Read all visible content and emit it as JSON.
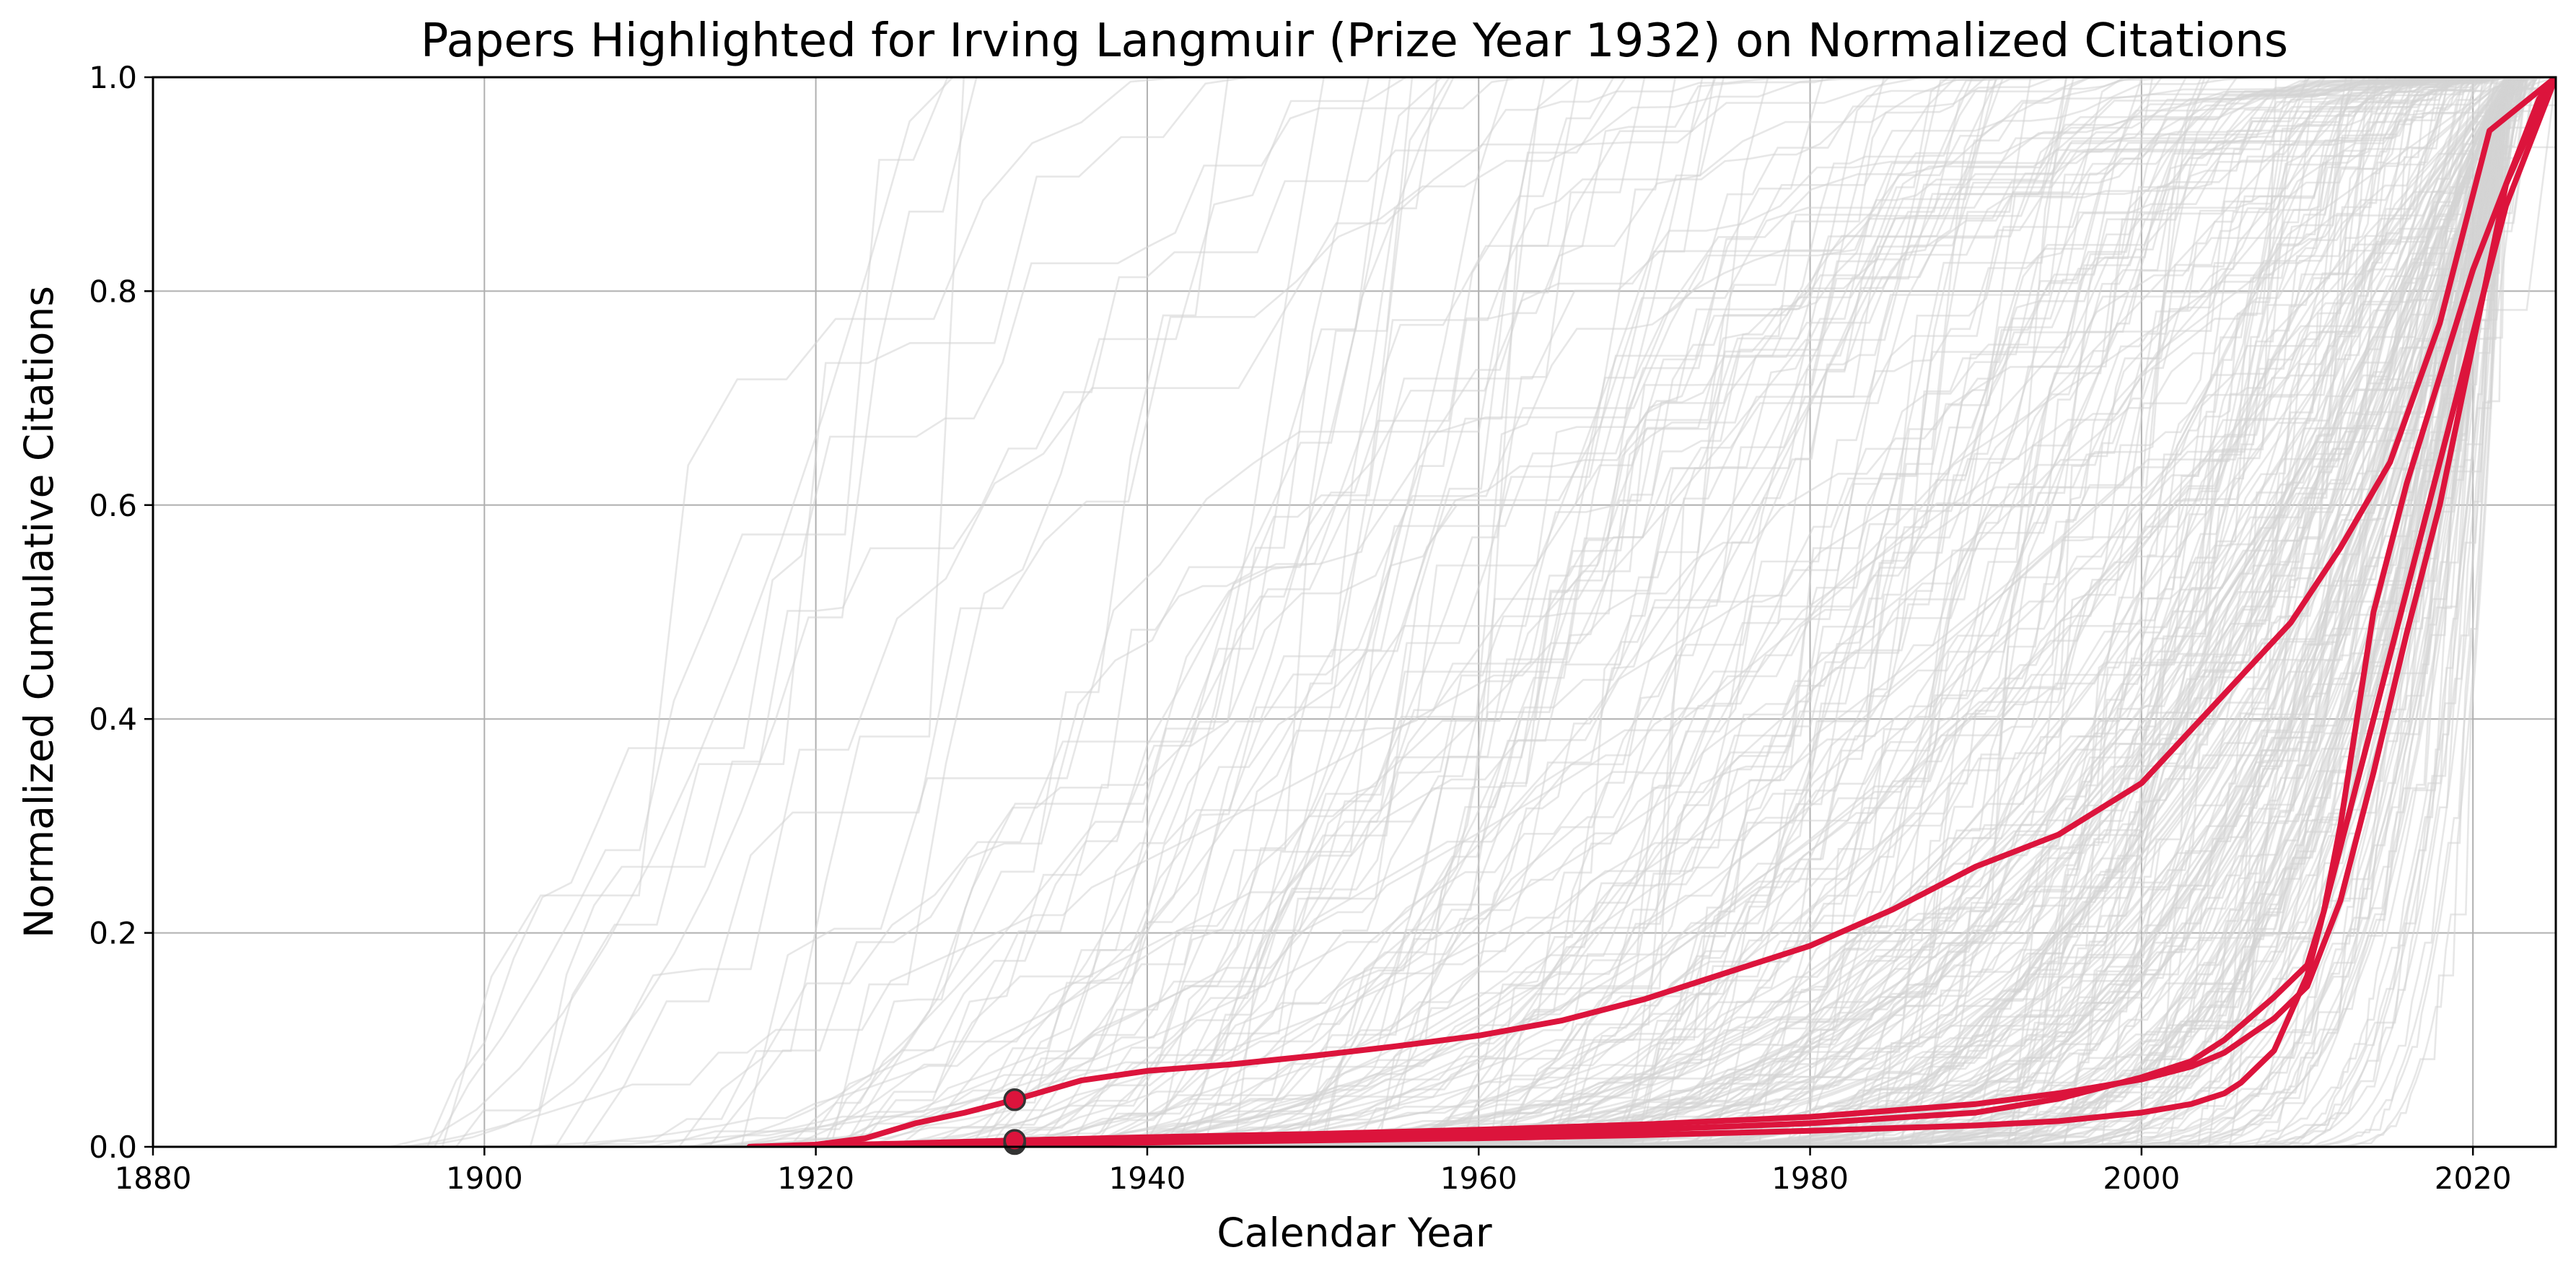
{
  "chart_data": {
    "type": "line",
    "title": "Papers Highlighted for Irving Langmuir (Prize Year 1932) on Normalized Citations",
    "xlabel": "Calendar Year",
    "ylabel": "Normalized Cumulative Citations",
    "xlim": [
      1880,
      2025
    ],
    "ylim": [
      0,
      1
    ],
    "x_ticks": [
      1880,
      1900,
      1920,
      1940,
      1960,
      1980,
      2000,
      2020
    ],
    "y_ticks": [
      0.0,
      0.2,
      0.4,
      0.6,
      0.8,
      1.0
    ],
    "grid": true,
    "prize_year": 1932,
    "background_series_color": "#d3d3d3",
    "highlight_color": "#dc143c",
    "marker_edge_color": "#333333",
    "highlighted_series": [
      {
        "x": [
          1916,
          1920,
          1923,
          1926,
          1929,
          1932,
          1936,
          1940,
          1945,
          1950,
          1955,
          1960,
          1965,
          1970,
          1975,
          1980,
          1985,
          1990,
          1995,
          2000,
          2003,
          2006,
          2009,
          2012,
          2015,
          2018,
          2021,
          2025
        ],
        "y": [
          0.0,
          0.002,
          0.008,
          0.022,
          0.032,
          0.044,
          0.062,
          0.071,
          0.077,
          0.085,
          0.094,
          0.104,
          0.118,
          0.138,
          0.163,
          0.188,
          0.222,
          0.262,
          0.292,
          0.34,
          0.39,
          0.44,
          0.49,
          0.56,
          0.64,
          0.77,
          0.95,
          1.0
        ],
        "marker": {
          "x": 1932,
          "y": 0.044
        }
      },
      {
        "x": [
          1916,
          1925,
          1932,
          1940,
          1950,
          1960,
          1970,
          1980,
          1990,
          1995,
          2000,
          2003,
          2005,
          2008,
          2010,
          2012,
          2014,
          2016,
          2018,
          2020,
          2022,
          2024,
          2025
        ],
        "y": [
          0.0,
          0.003,
          0.006,
          0.009,
          0.012,
          0.016,
          0.021,
          0.028,
          0.04,
          0.05,
          0.063,
          0.075,
          0.088,
          0.12,
          0.15,
          0.23,
          0.35,
          0.48,
          0.6,
          0.75,
          0.9,
          0.98,
          1.0
        ],
        "marker": {
          "x": 1932,
          "y": 0.006
        }
      },
      {
        "x": [
          1916,
          1925,
          1932,
          1940,
          1950,
          1960,
          1970,
          1980,
          1990,
          1995,
          2000,
          2003,
          2005,
          2008,
          2010,
          2011,
          2012,
          2013,
          2014,
          2016,
          2018,
          2020,
          2022,
          2024,
          2025
        ],
        "y": [
          0.0,
          0.002,
          0.004,
          0.006,
          0.009,
          0.012,
          0.016,
          0.022,
          0.032,
          0.045,
          0.065,
          0.08,
          0.1,
          0.14,
          0.17,
          0.22,
          0.3,
          0.4,
          0.5,
          0.62,
          0.72,
          0.82,
          0.9,
          0.97,
          1.0
        ],
        "marker": {
          "x": 1932,
          "y": 0.004
        }
      },
      {
        "x": [
          1916,
          1925,
          1932,
          1940,
          1950,
          1960,
          1970,
          1980,
          1990,
          1995,
          2000,
          2003,
          2005,
          2006,
          2008,
          2010,
          2012,
          2014,
          2016,
          2018,
          2020,
          2022,
          2024,
          2025
        ],
        "y": [
          0.0,
          0.002,
          0.003,
          0.004,
          0.006,
          0.008,
          0.011,
          0.015,
          0.02,
          0.024,
          0.032,
          0.04,
          0.05,
          0.06,
          0.09,
          0.16,
          0.28,
          0.4,
          0.52,
          0.64,
          0.76,
          0.88,
          0.96,
          1.0
        ],
        "marker": {
          "x": 1932,
          "y": 0.003
        }
      }
    ]
  }
}
